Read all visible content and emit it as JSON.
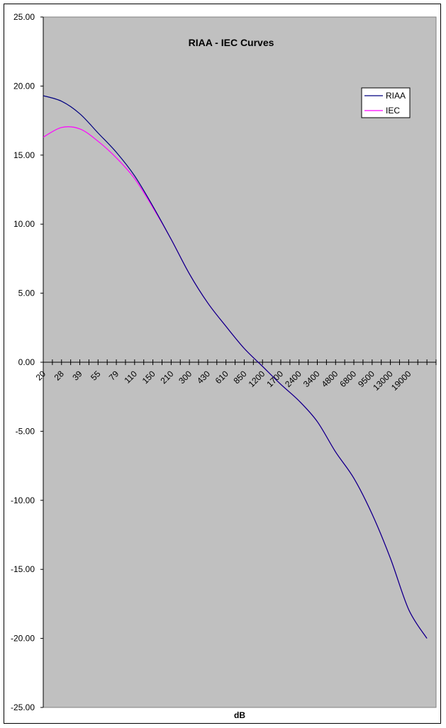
{
  "chart_data": {
    "type": "line",
    "title": "RIAA - IEC Curves",
    "xlabel": "dB",
    "ylabel": "",
    "ylim": [
      -25,
      25
    ],
    "y_ticks": [
      "25.00",
      "20.00",
      "15.00",
      "10.00",
      "5.00",
      "0.00",
      "-5.00",
      "-10.00",
      "-15.00",
      "-20.00",
      "-25.00"
    ],
    "x_tick_labels": [
      "20",
      "28",
      "39",
      "55",
      "79",
      "110",
      "150",
      "210",
      "300",
      "430",
      "610",
      "850",
      "1200",
      "1700",
      "2400",
      "3400",
      "4800",
      "6800",
      "9500",
      "13000",
      "19000"
    ],
    "grid": false,
    "legend_position": "top-right",
    "colors": {
      "plot_bg": "#c0c0c0",
      "RIAA": "#000080",
      "IEC": "#ff00ff"
    },
    "series": [
      {
        "name": "RIAA",
        "x": [
          "20",
          "28",
          "39",
          "55",
          "79",
          "110",
          "150",
          "210",
          "300",
          "430",
          "610",
          "850",
          "1200",
          "1700",
          "2400",
          "3400",
          "4800",
          "6800",
          "9500",
          "13000",
          "19000",
          "20000"
        ],
        "values": [
          19.3,
          18.9,
          18.0,
          16.6,
          15.2,
          13.5,
          11.3,
          8.9,
          6.4,
          4.3,
          2.6,
          1.0,
          -0.3,
          -1.6,
          -2.8,
          -4.3,
          -6.5,
          -8.4,
          -11.0,
          -14.2,
          -17.9,
          -20.0
        ]
      },
      {
        "name": "IEC",
        "x": [
          "20",
          "28",
          "39",
          "55",
          "79",
          "110",
          "150",
          "210",
          "300",
          "430",
          "610",
          "850",
          "1200",
          "1700",
          "2400",
          "3400",
          "4800",
          "6800",
          "9500",
          "13000",
          "19000",
          "20000"
        ],
        "values": [
          16.3,
          17.0,
          16.9,
          16.0,
          14.8,
          13.3,
          11.2,
          8.9,
          6.4,
          4.3,
          2.6,
          1.0,
          -0.3,
          -1.6,
          -2.8,
          -4.3,
          -6.5,
          -8.4,
          -11.0,
          -14.2,
          -17.9,
          -20.0
        ]
      }
    ]
  }
}
